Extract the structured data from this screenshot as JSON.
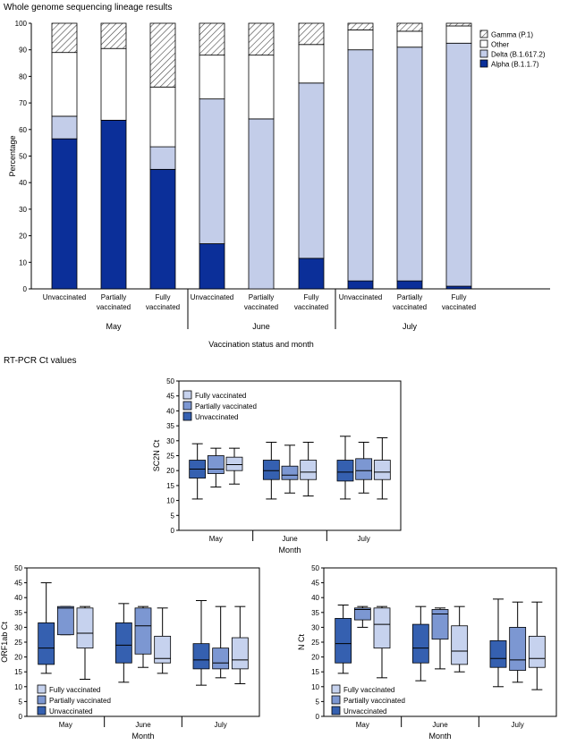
{
  "section1_title": "Whole genome sequencing lineage results",
  "section2_title": "RT-PCR Ct values",
  "colors": {
    "alpha": "#0b2f99",
    "delta": "#c3cde9",
    "other": "#ffffff",
    "box_unvaccinated": "#3560b0",
    "box_partial": "#7c97d2",
    "box_full": "#c6d2ee",
    "axis": "#000000"
  },
  "chart_data": [
    {
      "id": "lineage",
      "type": "bar",
      "stacked": true,
      "ylabel": "Percentage",
      "xlabel": "Vaccination status and month",
      "ylim": [
        0,
        100
      ],
      "yticks": [
        0,
        10,
        20,
        30,
        40,
        50,
        60,
        70,
        80,
        90,
        100
      ],
      "groups": [
        "May",
        "June",
        "July"
      ],
      "categories": [
        [
          "Unvaccinated"
        ],
        [
          "Partially",
          "vaccinated"
        ],
        [
          "Fully",
          "vaccinated"
        ],
        [
          "Unvaccinated"
        ],
        [
          "Partially",
          "vaccinated"
        ],
        [
          "Fully",
          "vaccinated"
        ],
        [
          "Unvaccinated"
        ],
        [
          "Partially",
          "vaccinated"
        ],
        [
          "Fully",
          "vaccinated"
        ]
      ],
      "series": [
        {
          "name": "Alpha (B.1.1.7)",
          "values": [
            56.5,
            63.5,
            45,
            17,
            0,
            11.5,
            3,
            3,
            1
          ]
        },
        {
          "name": "Delta (B.1.617.2)",
          "values": [
            8.5,
            0,
            8.5,
            54.5,
            64,
            66,
            87,
            88,
            91.5
          ]
        },
        {
          "name": "Other",
          "values": [
            24,
            27,
            22.5,
            16.5,
            24,
            14.5,
            7.5,
            6,
            6.5
          ]
        },
        {
          "name": "Gamma (P.1)",
          "values": [
            11,
            9.5,
            24,
            12,
            12,
            8,
            2.5,
            3,
            1
          ]
        }
      ],
      "legend": [
        "Gamma (P.1)",
        "Other",
        "Delta (B.1.617.2)",
        "Alpha (B.1.1.7)"
      ],
      "legend_position": "top-right"
    },
    {
      "id": "sc2n",
      "type": "box",
      "ylabel": "SC2N Ct",
      "xlabel": "Month",
      "ylim": [
        0,
        50
      ],
      "yticks": [
        0,
        5,
        10,
        15,
        20,
        25,
        30,
        35,
        40,
        45,
        50
      ],
      "months": [
        "May",
        "June",
        "July"
      ],
      "legend": [
        "Fully vaccinated",
        "Partially vaccinated",
        "Unvaccinated"
      ],
      "legend_position": "top-left",
      "boxes": [
        {
          "group": "Unvaccinated",
          "month": "May",
          "min": 10.5,
          "q1": 17.5,
          "median": 20.5,
          "q3": 23.5,
          "max": 29
        },
        {
          "group": "Partially vaccinated",
          "month": "May",
          "min": 14.5,
          "q1": 19,
          "median": 20.5,
          "q3": 25,
          "max": 27.5
        },
        {
          "group": "Fully vaccinated",
          "month": "May",
          "min": 15.5,
          "q1": 20,
          "median": 22,
          "q3": 24.5,
          "max": 27.5
        },
        {
          "group": "Unvaccinated",
          "month": "June",
          "min": 10.5,
          "q1": 17,
          "median": 20,
          "q3": 23.5,
          "max": 29.5
        },
        {
          "group": "Partially vaccinated",
          "month": "June",
          "min": 12.5,
          "q1": 17,
          "median": 18.5,
          "q3": 21.5,
          "max": 28.5
        },
        {
          "group": "Fully vaccinated",
          "month": "June",
          "min": 11.5,
          "q1": 17,
          "median": 19.5,
          "q3": 23.5,
          "max": 29.5
        },
        {
          "group": "Unvaccinated",
          "month": "July",
          "min": 10.5,
          "q1": 16.5,
          "median": 19.5,
          "q3": 23.5,
          "max": 31.5
        },
        {
          "group": "Partially vaccinated",
          "month": "July",
          "min": 12.5,
          "q1": 17,
          "median": 20,
          "q3": 24,
          "max": 29.5
        },
        {
          "group": "Fully vaccinated",
          "month": "July",
          "min": 10.5,
          "q1": 17,
          "median": 19.5,
          "q3": 23.5,
          "max": 31
        }
      ]
    },
    {
      "id": "orf1ab",
      "type": "box",
      "ylabel": "ORF1ab Ct",
      "xlabel": "Month",
      "ylim": [
        0,
        50
      ],
      "yticks": [
        0,
        5,
        10,
        15,
        20,
        25,
        30,
        35,
        40,
        45,
        50
      ],
      "months": [
        "May",
        "June",
        "July"
      ],
      "legend": [
        "Fully vaccinated",
        "Partially vaccinated",
        "Unvaccinated"
      ],
      "legend_position": "bottom-left",
      "boxes": [
        {
          "group": "Unvaccinated",
          "month": "May",
          "min": 14.5,
          "q1": 17.5,
          "median": 23,
          "q3": 31.5,
          "max": 45
        },
        {
          "group": "Partially vaccinated",
          "month": "May",
          "min": 27.5,
          "q1": 27.5,
          "median": 36.5,
          "q3": 37,
          "max": 37
        },
        {
          "group": "Fully vaccinated",
          "month": "May",
          "min": 12.5,
          "q1": 23,
          "median": 28,
          "q3": 36.5,
          "max": 37
        },
        {
          "group": "Unvaccinated",
          "month": "June",
          "min": 11.5,
          "q1": 18,
          "median": 24,
          "q3": 31.5,
          "max": 38
        },
        {
          "group": "Partially vaccinated",
          "month": "June",
          "min": 16.5,
          "q1": 21,
          "median": 30.5,
          "q3": 36.5,
          "max": 37
        },
        {
          "group": "Fully vaccinated",
          "month": "June",
          "min": 14.5,
          "q1": 18,
          "median": 19.5,
          "q3": 27,
          "max": 36.5
        },
        {
          "group": "Unvaccinated",
          "month": "July",
          "min": 10.5,
          "q1": 16,
          "median": 19,
          "q3": 24.5,
          "max": 39
        },
        {
          "group": "Partially vaccinated",
          "month": "July",
          "min": 13,
          "q1": 16,
          "median": 18,
          "q3": 23,
          "max": 37
        },
        {
          "group": "Fully vaccinated",
          "month": "July",
          "min": 11,
          "q1": 16,
          "median": 19,
          "q3": 26.5,
          "max": 37
        }
      ]
    },
    {
      "id": "n",
      "type": "box",
      "ylabel": "N Ct",
      "xlabel": "Month",
      "ylim": [
        0,
        50
      ],
      "yticks": [
        0,
        5,
        10,
        15,
        20,
        25,
        30,
        35,
        40,
        45,
        50
      ],
      "months": [
        "May",
        "June",
        "July"
      ],
      "legend": [
        "Fully vaccinated",
        "Partially vaccinated",
        "Unvaccinated"
      ],
      "legend_position": "bottom-left",
      "boxes": [
        {
          "group": "Unvaccinated",
          "month": "May",
          "min": 14.5,
          "q1": 18,
          "median": 24.5,
          "q3": 33,
          "max": 37.5
        },
        {
          "group": "Partially vaccinated",
          "month": "May",
          "min": 30,
          "q1": 32.5,
          "median": 36,
          "q3": 36.5,
          "max": 37
        },
        {
          "group": "Fully vaccinated",
          "month": "May",
          "min": 13,
          "q1": 23,
          "median": 31,
          "q3": 36.5,
          "max": 37
        },
        {
          "group": "Unvaccinated",
          "month": "June",
          "min": 12,
          "q1": 18,
          "median": 23,
          "q3": 31,
          "max": 37
        },
        {
          "group": "Partially vaccinated",
          "month": "June",
          "min": 16,
          "q1": 26,
          "median": 34.5,
          "q3": 36,
          "max": 36.5
        },
        {
          "group": "Fully vaccinated",
          "month": "June",
          "min": 15,
          "q1": 17.5,
          "median": 22,
          "q3": 30.5,
          "max": 37
        },
        {
          "group": "Unvaccinated",
          "month": "July",
          "min": 10,
          "q1": 16.5,
          "median": 19.5,
          "q3": 25.5,
          "max": 39.5
        },
        {
          "group": "Partially vaccinated",
          "month": "July",
          "min": 11.5,
          "q1": 15.5,
          "median": 19,
          "q3": 30,
          "max": 38.5
        },
        {
          "group": "Fully vaccinated",
          "month": "July",
          "min": 9,
          "q1": 16.5,
          "median": 19.5,
          "q3": 27,
          "max": 38.5
        }
      ]
    }
  ]
}
